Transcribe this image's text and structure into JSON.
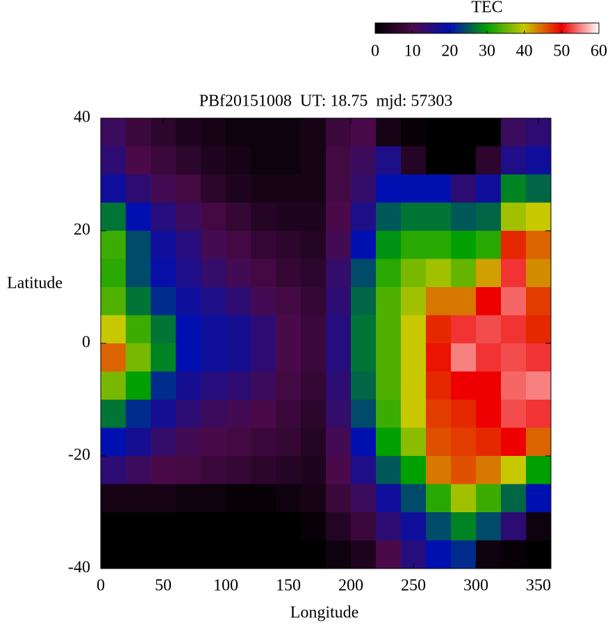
{
  "chart_data": {
    "type": "heatmap",
    "title": "PBf20151008  UT: 18.75  mjd: 57303",
    "x_label": "Longitude",
    "y_label": "Latitude",
    "colorbar_label": "TEC",
    "x": [
      10,
      30,
      50,
      70,
      90,
      110,
      130,
      150,
      170,
      190,
      210,
      230,
      250,
      270,
      290,
      310,
      330,
      350
    ],
    "y": [
      37.5,
      32.5,
      27.5,
      22.5,
      17.5,
      12.5,
      7.5,
      2.5,
      -2.5,
      -7.5,
      -12.5,
      -17.5,
      -22.5,
      -27.5,
      -32.5,
      -37.5
    ],
    "values": [
      [
        12,
        8,
        6,
        4,
        3,
        2,
        2,
        2,
        3,
        8,
        10,
        3,
        1,
        0,
        0,
        0,
        12,
        14
      ],
      [
        14,
        10,
        8,
        6,
        4,
        3,
        2,
        2,
        3,
        9,
        12,
        16,
        5,
        0,
        0,
        6,
        16,
        18
      ],
      [
        18,
        14,
        11,
        9,
        6,
        4,
        3,
        3,
        3,
        9,
        13,
        20,
        20,
        20,
        14,
        18,
        28,
        26
      ],
      [
        27,
        20,
        15,
        12,
        9,
        7,
        5,
        4,
        4,
        10,
        16,
        25,
        27,
        27,
        25,
        26,
        38,
        40
      ],
      [
        33,
        24,
        18,
        15,
        11,
        9,
        7,
        6,
        5,
        11,
        20,
        29,
        32,
        32,
        30,
        32,
        48,
        45
      ],
      [
        32,
        24,
        19,
        16,
        13,
        11,
        9,
        7,
        6,
        13,
        24,
        32,
        36,
        38,
        35,
        42,
        52,
        43
      ],
      [
        34,
        27,
        22,
        18,
        16,
        14,
        11,
        9,
        7,
        14,
        26,
        34,
        38,
        44,
        44,
        50,
        54,
        47
      ],
      [
        40,
        33,
        27,
        20,
        18,
        17,
        14,
        10,
        8,
        15,
        27,
        34,
        40,
        48,
        52,
        53,
        52,
        48
      ],
      [
        45,
        36,
        28,
        20,
        18,
        17,
        14,
        10,
        8,
        15,
        27,
        34,
        40,
        49,
        55,
        52,
        53,
        52
      ],
      [
        36,
        30,
        22,
        17,
        15,
        14,
        12,
        9,
        7,
        14,
        26,
        34,
        40,
        48,
        50,
        50,
        54,
        55
      ],
      [
        27,
        22,
        17,
        14,
        12,
        11,
        10,
        8,
        6,
        13,
        24,
        33,
        40,
        47,
        48,
        50,
        53,
        52
      ],
      [
        20,
        17,
        13,
        11,
        10,
        9,
        8,
        7,
        5,
        11,
        20,
        30,
        37,
        46,
        47,
        48,
        50,
        45
      ],
      [
        14,
        12,
        10,
        9,
        8,
        7,
        6,
        5,
        4,
        10,
        16,
        25,
        30,
        44,
        46,
        44,
        40,
        30
      ],
      [
        3,
        3,
        3,
        2,
        2,
        1,
        1,
        2,
        3,
        8,
        12,
        18,
        24,
        32,
        38,
        33,
        26,
        20
      ],
      [
        0,
        0,
        0,
        0,
        0,
        0,
        0,
        0,
        1,
        5,
        8,
        14,
        18,
        24,
        28,
        24,
        14,
        2
      ],
      [
        0,
        0,
        0,
        0,
        0,
        0,
        0,
        0,
        0,
        2,
        4,
        10,
        15,
        20,
        22,
        2,
        1,
        0
      ]
    ],
    "xlim": [
      0,
      360
    ],
    "ylim": [
      -40,
      40
    ],
    "xticks": [
      0,
      50,
      100,
      150,
      200,
      250,
      300,
      350
    ],
    "yticks": [
      -40,
      -20,
      0,
      20,
      40
    ],
    "zlim": [
      0,
      60
    ],
    "zticks": [
      0,
      10,
      20,
      30,
      40,
      50,
      60
    ],
    "colormap": [
      "#000000",
      "#4a0a4a",
      "#0010b0",
      "#00a000",
      "#c8c800",
      "#ee0000",
      "#ffffff"
    ]
  }
}
